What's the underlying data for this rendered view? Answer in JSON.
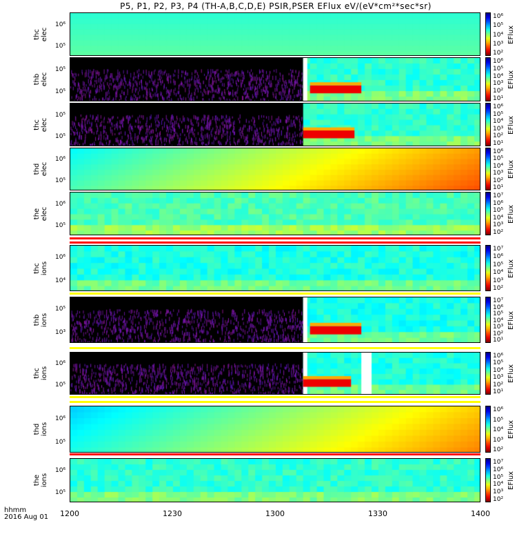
{
  "title": "P5, P1, P2, P3, P4 (TH-A,B,C,D,E) PSIR,PSER EFlux eV/(eV*cm²*sec*sr)",
  "x_axis": {
    "label_top": "hhmm",
    "label_bottom": "2016 Aug 01",
    "ticks": [
      "1200",
      "1230",
      "1300",
      "1330",
      "1400"
    ]
  },
  "colorbar_title": "EFlux",
  "chart_data": [
    {
      "type": "heatmap",
      "ylabel": [
        "thc",
        "elec"
      ],
      "yticks": [
        "10⁶",
        "10⁵"
      ],
      "cbar_ticks": [
        "10⁶",
        "10⁵",
        "10⁴",
        "10³",
        "10²"
      ],
      "base": 0.42,
      "gradient": "time",
      "gap_start": null,
      "cover": null,
      "notes": "uniform green-cyan"
    },
    {
      "type": "heatmap",
      "ylabel": [
        "thb",
        "elec"
      ],
      "yticks": [
        "10⁵",
        "10⁵"
      ],
      "cbar_ticks": [
        "10⁶",
        "10⁵",
        "10⁴",
        "10³",
        "10²",
        "10¹"
      ],
      "base": 0.42,
      "gradient": "none",
      "gap_start": 1308,
      "cover": "1310-1325",
      "notes": "fill before 1308"
    },
    {
      "type": "heatmap",
      "ylabel": [
        "thc",
        "elec"
      ],
      "yticks": [
        "10⁵",
        "10⁵"
      ],
      "cbar_ticks": [
        "10⁶",
        "10⁵",
        "10⁴",
        "10³",
        "10²",
        "10¹"
      ],
      "base": 0.42,
      "gradient": "none",
      "gap_start": 1308,
      "cover": "1308-1323",
      "notes": "fill before 1308"
    },
    {
      "type": "heatmap",
      "ylabel": [
        "thd",
        "elec"
      ],
      "yticks": [
        "10⁶",
        "10⁵"
      ],
      "cbar_ticks": [
        "10⁶",
        "10⁵",
        "10⁴",
        "10³",
        "10²",
        "10¹"
      ],
      "base": 0.5,
      "gradient": "rise",
      "gap_start": null,
      "cover": null,
      "notes": "increasing flux toward 1400"
    },
    {
      "type": "heatmap",
      "ylabel": [
        "the",
        "elec"
      ],
      "yticks": [
        "10⁶",
        "10⁵"
      ],
      "cbar_ticks": [
        "10⁷",
        "10⁶",
        "10⁵",
        "10⁴",
        "10³",
        "10²"
      ],
      "base": 0.45,
      "gradient": "none",
      "gap_start": null,
      "cover": null,
      "notes": ""
    },
    {
      "type": "heatmap",
      "ylabel": [
        "thc",
        "ions"
      ],
      "yticks": [
        "10⁶",
        "10⁴"
      ],
      "cbar_ticks": [
        "10⁷",
        "10⁶",
        "10⁵",
        "10⁴",
        "10³",
        "10²"
      ],
      "base": 0.4,
      "gradient": "none",
      "gap_start": null,
      "cover": null,
      "notes": ""
    },
    {
      "type": "heatmap",
      "ylabel": [
        "thb",
        "ions"
      ],
      "yticks": [
        "10⁵",
        "10³"
      ],
      "cbar_ticks": [
        "10⁷",
        "10⁶",
        "10⁵",
        "10⁴",
        "10³",
        "10²",
        "10¹"
      ],
      "base": 0.4,
      "gradient": "none",
      "gap_start": 1308,
      "cover": "1310-1325",
      "notes": ""
    },
    {
      "type": "heatmap",
      "ylabel": [
        "thc",
        "ions"
      ],
      "yticks": [
        "10⁶",
        "10⁵"
      ],
      "cbar_ticks": [
        "10⁶",
        "10⁵",
        "10⁴",
        "10³",
        "10²",
        "10¹"
      ],
      "base": 0.4,
      "gradient": "none",
      "gap_start": 1308,
      "cover": "1308-1322",
      "notes": "data gap 1325-1328"
    },
    {
      "type": "heatmap",
      "ylabel": [
        "thd",
        "ions"
      ],
      "yticks": [
        "10⁶",
        "10⁵"
      ],
      "cbar_ticks": [
        "10⁶",
        "10⁵",
        "10⁴",
        "10³",
        "10²"
      ],
      "base": 0.45,
      "gradient": "rise",
      "gap_start": null,
      "cover": null,
      "notes": ""
    },
    {
      "type": "heatmap",
      "ylabel": [
        "the",
        "ions"
      ],
      "yticks": [
        "10⁶",
        "10⁵"
      ],
      "cbar_ticks": [
        "10⁷",
        "10⁶",
        "10⁵",
        "10⁴",
        "10³",
        "10²"
      ],
      "base": 0.42,
      "gradient": "none",
      "gap_start": null,
      "cover": null,
      "notes": ""
    }
  ]
}
